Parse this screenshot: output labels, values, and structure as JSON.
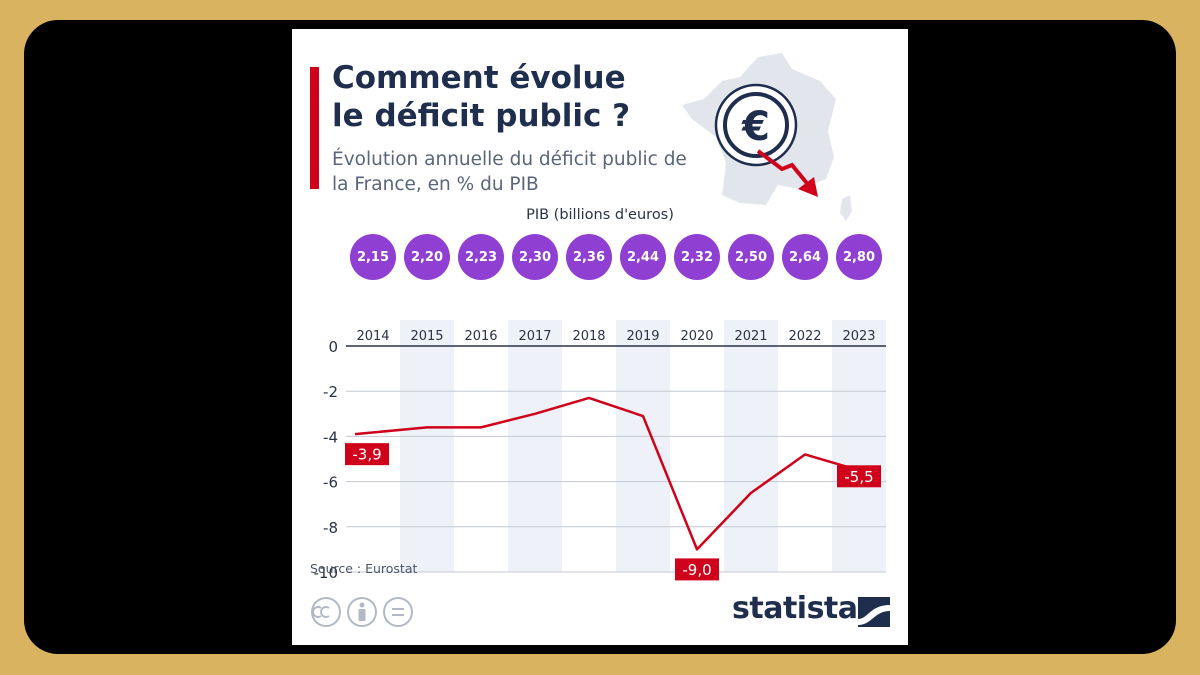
{
  "header": {
    "title": "Comment évolue le déficit public ?",
    "subtitle": "Évolution annuelle du déficit public de la France, en % du PIB"
  },
  "gdp": {
    "label": "PIB (billions d'euros)",
    "values": [
      "2,15",
      "2,20",
      "2,23",
      "2,30",
      "2,36",
      "2,44",
      "2,32",
      "2,50",
      "2,64",
      "2,80"
    ]
  },
  "chart_data": {
    "type": "line",
    "x": [
      "2014",
      "2015",
      "2016",
      "2017",
      "2018",
      "2019",
      "2020",
      "2021",
      "2022",
      "2023"
    ],
    "series": [
      {
        "values": [
          -3.9,
          -3.6,
          -3.6,
          -3.0,
          -2.3,
          -3.1,
          -9.0,
          -6.5,
          -4.8,
          -5.5
        ]
      }
    ],
    "data_labels": [
      {
        "index": 0,
        "text": "-3,9"
      },
      {
        "index": 6,
        "text": "-9,0"
      },
      {
        "index": 9,
        "text": "-5,5"
      }
    ],
    "yticks": [
      "0",
      "-2",
      "-4",
      "-6",
      "-8",
      "-10"
    ],
    "ylim": [
      -10,
      0
    ],
    "grid": true,
    "line_color": "#d0021b",
    "band_color": "#eef1f8"
  },
  "footer": {
    "source": "Source : Eurostat",
    "brand": "statista"
  },
  "colors": {
    "title": "#1f2e4d",
    "accent_red": "#d0021b",
    "bubble": "#8f3fd1"
  }
}
